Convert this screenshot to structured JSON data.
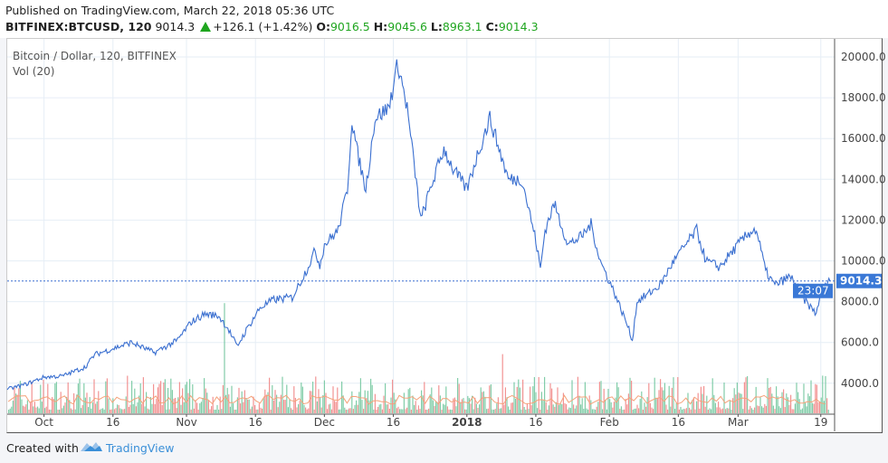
{
  "header": {
    "published": "Published on TradingView.com, March 22, 2018 05:36 UTC",
    "symbol": "BITFINEX:BTCUSD, 120",
    "last": "9014.3",
    "change": "+126.1 (+1.42%)",
    "o_label": "O:",
    "o": "9016.5",
    "h_label": "H:",
    "h": "9045.6",
    "l_label": "L:",
    "l": "8963.1",
    "c_label": "C:",
    "c": "9014.3"
  },
  "legend": {
    "title": "Bitcoin / Dollar, 120, BITFINEX",
    "vol": "Vol (20)"
  },
  "footer": {
    "created": "Created with",
    "brand": "TradingView"
  },
  "colors": {
    "line": "#3a6fd0",
    "vol_up": "#6cc49a",
    "vol_down": "#f08080",
    "vol_ma": "#f4a27a",
    "label_bg": "#3a78d6",
    "grid": "#e6eef6"
  },
  "chart_data": {
    "type": "line",
    "title": "Bitcoin / Dollar, 120, BITFINEX",
    "x_unit": "days since 2017-10-01",
    "xlim": [
      -8,
      172
    ],
    "ylim": [
      2500,
      20500
    ],
    "y_ticks": [
      "4000.0",
      "6000.0",
      "8000.0",
      "10000.0",
      "12000.0",
      "14000.0",
      "16000.0",
      "18000.0",
      "20000.0"
    ],
    "y_tick_values": [
      4000,
      6000,
      8000,
      10000,
      12000,
      14000,
      16000,
      18000,
      20000
    ],
    "x_ticks": [
      {
        "day": 0,
        "label": "Oct"
      },
      {
        "day": 15,
        "label": "16"
      },
      {
        "day": 31,
        "label": "Nov"
      },
      {
        "day": 46,
        "label": "16"
      },
      {
        "day": 61,
        "label": "Dec"
      },
      {
        "day": 76,
        "label": "16"
      },
      {
        "day": 92,
        "label": "2018",
        "bold": true
      },
      {
        "day": 107,
        "label": "16"
      },
      {
        "day": 123,
        "label": "Feb"
      },
      {
        "day": 138,
        "label": "16"
      },
      {
        "day": 151,
        "label": "Mar"
      },
      {
        "day": 169,
        "label": "19"
      }
    ],
    "price": [
      [
        -8,
        3700
      ],
      [
        -4,
        3950
      ],
      [
        0,
        4300
      ],
      [
        4,
        4350
      ],
      [
        9,
        4800
      ],
      [
        11,
        5400
      ],
      [
        15,
        5700
      ],
      [
        19,
        6000
      ],
      [
        24,
        5500
      ],
      [
        29,
        6100
      ],
      [
        32,
        7000
      ],
      [
        35,
        7400
      ],
      [
        38,
        7300
      ],
      [
        40,
        6700
      ],
      [
        42,
        5800
      ],
      [
        44,
        6600
      ],
      [
        47,
        7700
      ],
      [
        50,
        8100
      ],
      [
        54,
        8200
      ],
      [
        57,
        9500
      ],
      [
        59,
        10500
      ],
      [
        60,
        9800
      ],
      [
        61,
        10800
      ],
      [
        64,
        11500
      ],
      [
        66,
        13500
      ],
      [
        67,
        17000
      ],
      [
        68,
        15500
      ],
      [
        70,
        13500
      ],
      [
        72,
        17000
      ],
      [
        75,
        17500
      ],
      [
        77,
        19700
      ],
      [
        79,
        17500
      ],
      [
        82,
        12000
      ],
      [
        84,
        13500
      ],
      [
        87,
        15500
      ],
      [
        89,
        14500
      ],
      [
        92,
        13500
      ],
      [
        94,
        15000
      ],
      [
        97,
        17000
      ],
      [
        99,
        15500
      ],
      [
        101,
        14000
      ],
      [
        104,
        14000
      ],
      [
        107,
        11000
      ],
      [
        108,
        9600
      ],
      [
        109,
        11500
      ],
      [
        111,
        12800
      ],
      [
        114,
        10800
      ],
      [
        117,
        11200
      ],
      [
        119,
        11800
      ],
      [
        121,
        10000
      ],
      [
        124,
        8500
      ],
      [
        127,
        6800
      ],
      [
        128,
        6100
      ],
      [
        129,
        8000
      ],
      [
        131,
        8300
      ],
      [
        134,
        8800
      ],
      [
        137,
        10000
      ],
      [
        142,
        11500
      ],
      [
        144,
        10000
      ],
      [
        147,
        9700
      ],
      [
        151,
        10800
      ],
      [
        154,
        11500
      ],
      [
        155,
        11500
      ],
      [
        157,
        9500
      ],
      [
        159,
        8800
      ],
      [
        162,
        9200
      ],
      [
        163,
        9100
      ],
      [
        165,
        8200
      ],
      [
        168,
        7400
      ],
      [
        169,
        8500
      ],
      [
        171,
        9014.3
      ]
    ],
    "last_price": "9014.3",
    "countdown": "23:07",
    "volume_series": "Vol (20)",
    "volume_spikes": [
      [
        39,
        8000
      ],
      [
        73,
        5000
      ],
      [
        82,
        5400
      ],
      [
        100,
        5500
      ],
      [
        128,
        6400
      ],
      [
        163,
        6400
      ]
    ]
  }
}
